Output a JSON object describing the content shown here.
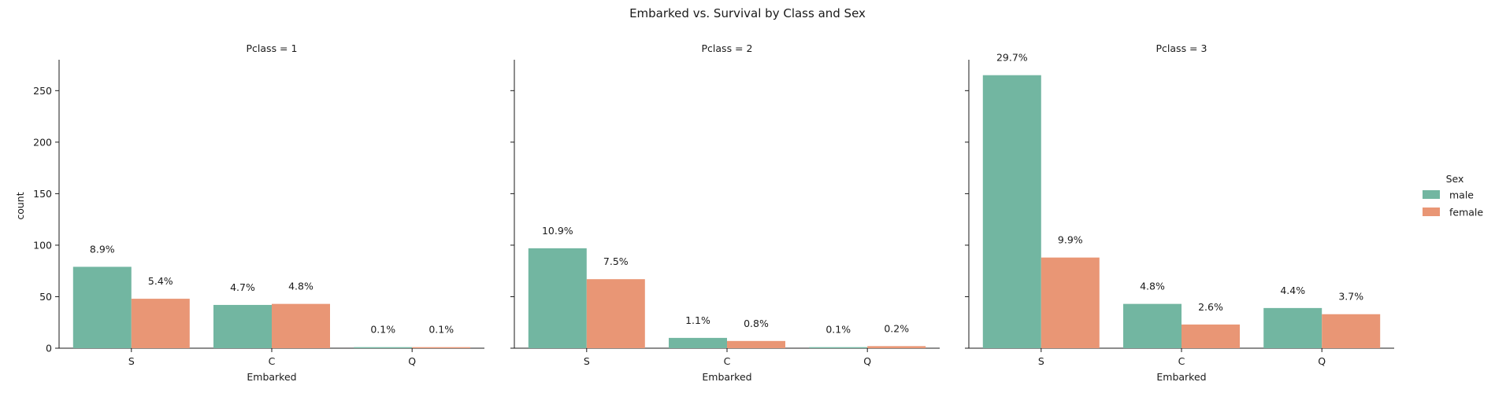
{
  "chart_data": {
    "type": "bar",
    "title": "Embarked vs. Survival by Class and Sex",
    "xlabel": "Embarked",
    "ylabel": "count",
    "ylim": [
      0,
      280
    ],
    "yticks": [
      0,
      50,
      100,
      150,
      200,
      250
    ],
    "categories": [
      "S",
      "C",
      "Q"
    ],
    "legend": {
      "title": "Sex",
      "placement": "right",
      "entries": [
        "male",
        "female"
      ]
    },
    "colors": {
      "male": "#72b6a1",
      "female": "#e99675"
    },
    "grid": false,
    "panels": [
      {
        "title": "Pclass = 1",
        "series": [
          {
            "name": "male",
            "values": [
              79,
              42,
              1
            ],
            "labels": [
              "8.9%",
              "4.7%",
              "0.1%"
            ]
          },
          {
            "name": "female",
            "values": [
              48,
              43,
              1
            ],
            "labels": [
              "5.4%",
              "4.8%",
              "0.1%"
            ]
          }
        ]
      },
      {
        "title": "Pclass = 2",
        "series": [
          {
            "name": "male",
            "values": [
              97,
              10,
              1
            ],
            "labels": [
              "10.9%",
              "1.1%",
              "0.1%"
            ]
          },
          {
            "name": "female",
            "values": [
              67,
              7,
              2
            ],
            "labels": [
              "7.5%",
              "0.8%",
              "0.2%"
            ]
          }
        ]
      },
      {
        "title": "Pclass = 3",
        "series": [
          {
            "name": "male",
            "values": [
              265,
              43,
              39
            ],
            "labels": [
              "29.7%",
              "4.8%",
              "4.4%"
            ]
          },
          {
            "name": "female",
            "values": [
              88,
              23,
              33
            ],
            "labels": [
              "9.9%",
              "2.6%",
              "3.7%"
            ]
          }
        ]
      }
    ]
  }
}
